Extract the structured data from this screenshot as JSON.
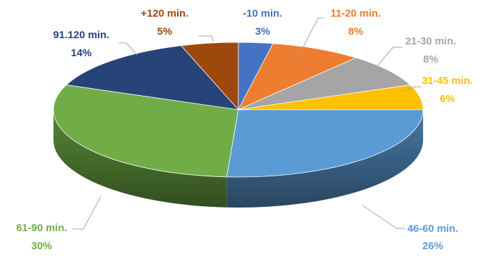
{
  "chart_data": {
    "type": "pie",
    "style": "3d",
    "title": "",
    "categories": [
      "-10 min.",
      "11-20 min.",
      "21-30 min.",
      "31-45 min.",
      "46-60 min.",
      "61-90 min.",
      "91.120 min.",
      "+120 min."
    ],
    "values": [
      3,
      8,
      8,
      6,
      26,
      30,
      14,
      5
    ],
    "value_labels": [
      "3%",
      "8%",
      "8%",
      "6%",
      "26%",
      "30%",
      "14%",
      "5%"
    ],
    "colors": [
      "#4472c4",
      "#ed7d31",
      "#a5a5a5",
      "#ffc000",
      "#5b9bd5",
      "#70ad47",
      "#264478",
      "#9e480e"
    ],
    "legend": "none",
    "data_labels": "outside-with-leader-lines"
  }
}
